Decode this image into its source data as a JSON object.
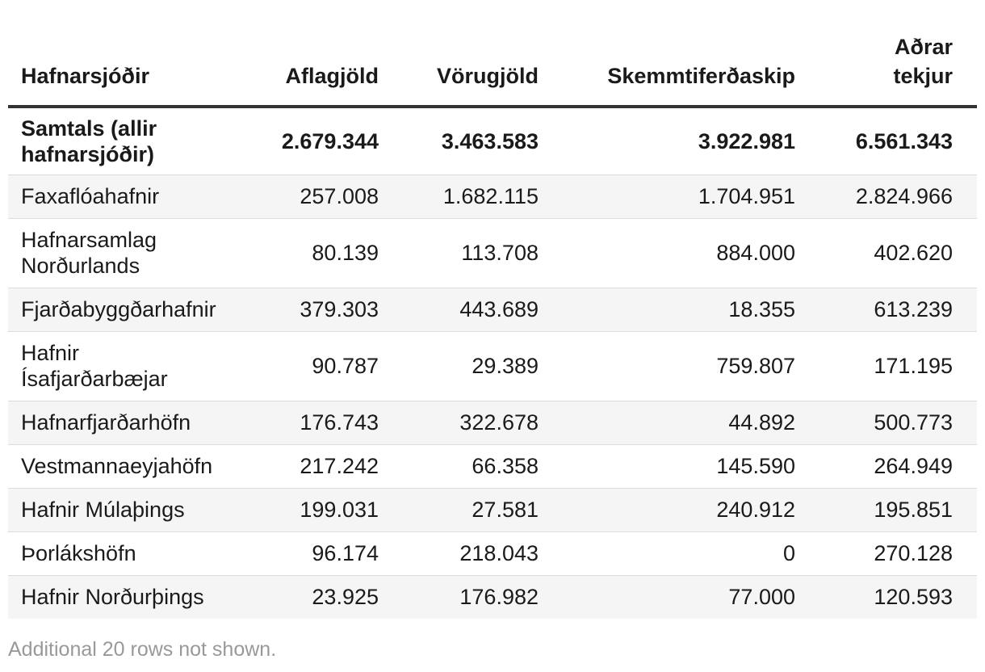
{
  "table": {
    "headers": [
      "Hafnarsjóðir",
      "Aflagjöld",
      "Vörugjöld",
      "Skemmtiferðaskip",
      "Aðrar tekjur"
    ],
    "total_row": [
      "Samtals (allir hafnarsjóðir)",
      "2.679.344",
      "3.463.583",
      "3.922.981",
      "6.561.343"
    ],
    "rows": [
      [
        "Faxaflóahafnir",
        "257.008",
        "1.682.115",
        "1.704.951",
        "2.824.966"
      ],
      [
        "Hafnarsamlag Norðurlands",
        "80.139",
        "113.708",
        "884.000",
        "402.620"
      ],
      [
        "Fjarðabyggðarhafnir",
        "379.303",
        "443.689",
        "18.355",
        "613.239"
      ],
      [
        "Hafnir Ísafjarðarbæjar",
        "90.787",
        "29.389",
        "759.807",
        "171.195"
      ],
      [
        "Hafnarfjarðarhöfn",
        "176.743",
        "322.678",
        "44.892",
        "500.773"
      ],
      [
        "Vestmannaeyjahöfn",
        "217.242",
        "66.358",
        "145.590",
        "264.949"
      ],
      [
        "Hafnir Múlaþings",
        "199.031",
        "27.581",
        "240.912",
        "195.851"
      ],
      [
        "Þorlákshöfn",
        "96.174",
        "218.043",
        "0",
        "270.128"
      ],
      [
        "Hafnir Norðurþings",
        "23.925",
        "176.982",
        "77.000",
        "120.593"
      ]
    ]
  },
  "footnote": "Additional 20 rows not shown."
}
